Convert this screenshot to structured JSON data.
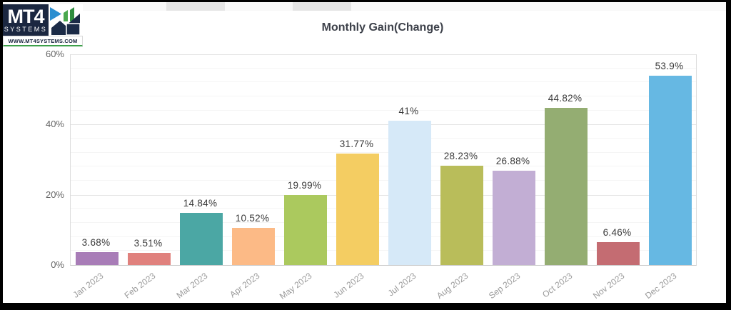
{
  "logo": {
    "brand": "MT4",
    "sub": "SYSTEMS",
    "website": "WWW.MT4SYSTEMS.COM",
    "navy": "#1b2740",
    "green": "#3da04a",
    "blue": "#2b8ed0"
  },
  "decor": {
    "strip_color": "#f8f8f8",
    "tab_color": "#e5e5e5",
    "frame_color": "#000000"
  },
  "chart_data": {
    "type": "bar",
    "title": "Monthly Gain(Change)",
    "categories": [
      "Jan 2023",
      "Feb 2023",
      "Mar 2023",
      "Apr 2023",
      "May 2023",
      "Jun 2023",
      "Jul 2023",
      "Aug 2023",
      "Sep 2023",
      "Oct 2023",
      "Nov 2023",
      "Dec 2023"
    ],
    "values": [
      3.68,
      3.51,
      14.84,
      10.52,
      19.99,
      31.77,
      41,
      28.23,
      26.88,
      44.82,
      6.46,
      53.9
    ],
    "value_labels": [
      "3.68%",
      "3.51%",
      "14.84%",
      "10.52%",
      "19.99%",
      "31.77%",
      "41%",
      "28.23%",
      "26.88%",
      "44.82%",
      "6.46%",
      "53.9%"
    ],
    "bar_colors": [
      "#a87cb7",
      "#e0817d",
      "#4ba7a4",
      "#fcba86",
      "#abc95e",
      "#f4cd62",
      "#d6e9f8",
      "#b9bd5a",
      "#c2aed4",
      "#94ad72",
      "#c46c72",
      "#66b8e3"
    ],
    "xlabel": "",
    "ylabel": "",
    "ylim": [
      0,
      60
    ],
    "yticks": [
      {
        "value": 0,
        "label": "0%"
      },
      {
        "value": 20,
        "label": "20%"
      },
      {
        "value": 40,
        "label": "40%"
      },
      {
        "value": 60,
        "label": "60%"
      }
    ],
    "minor_grid_step": 4,
    "grid": true,
    "legend_position": "none",
    "x_label_rotation": -37
  }
}
